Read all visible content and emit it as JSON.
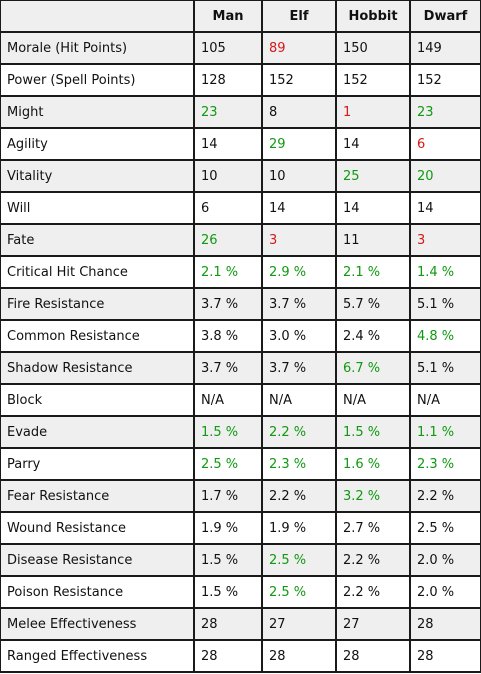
{
  "columns": [
    "Man",
    "Elf",
    "Hobbit",
    "Dwarf"
  ],
  "colors": {
    "good": "#109910",
    "bad": "#d81818",
    "neutral": "#111111"
  },
  "rows": [
    {
      "label": "Morale (Hit Points)",
      "values": [
        "105",
        "89",
        "150",
        "149"
      ],
      "status": [
        "neutral",
        "bad",
        "neutral",
        "neutral"
      ]
    },
    {
      "label": "Power (Spell Points)",
      "values": [
        "128",
        "152",
        "152",
        "152"
      ],
      "status": [
        "neutral",
        "neutral",
        "neutral",
        "neutral"
      ]
    },
    {
      "label": "Might",
      "values": [
        "23",
        "8",
        "1",
        "23"
      ],
      "status": [
        "good",
        "neutral",
        "bad",
        "good"
      ]
    },
    {
      "label": "Agility",
      "values": [
        "14",
        "29",
        "14",
        "6"
      ],
      "status": [
        "neutral",
        "good",
        "neutral",
        "bad"
      ]
    },
    {
      "label": "Vitality",
      "values": [
        "10",
        "10",
        "25",
        "20"
      ],
      "status": [
        "neutral",
        "neutral",
        "good",
        "good"
      ]
    },
    {
      "label": "Will",
      "values": [
        "6",
        "14",
        "14",
        "14"
      ],
      "status": [
        "neutral",
        "neutral",
        "neutral",
        "neutral"
      ]
    },
    {
      "label": "Fate",
      "values": [
        "26",
        "3",
        "11",
        "3"
      ],
      "status": [
        "good",
        "bad",
        "neutral",
        "bad"
      ]
    },
    {
      "label": "Critical Hit Chance",
      "values": [
        "2.1 %",
        "2.9 %",
        "2.1 %",
        "1.4 %"
      ],
      "status": [
        "good",
        "good",
        "good",
        "good"
      ]
    },
    {
      "label": "Fire Resistance",
      "values": [
        "3.7 %",
        "3.7 %",
        "5.7 %",
        "5.1 %"
      ],
      "status": [
        "neutral",
        "neutral",
        "neutral",
        "neutral"
      ]
    },
    {
      "label": "Common Resistance",
      "values": [
        "3.8 %",
        "3.0 %",
        "2.4 %",
        "4.8 %"
      ],
      "status": [
        "neutral",
        "neutral",
        "neutral",
        "good"
      ]
    },
    {
      "label": "Shadow Resistance",
      "values": [
        "3.7 %",
        "3.7 %",
        "6.7 %",
        "5.1 %"
      ],
      "status": [
        "neutral",
        "neutral",
        "good",
        "neutral"
      ]
    },
    {
      "label": "Block",
      "values": [
        "N/A",
        "N/A",
        "N/A",
        "N/A"
      ],
      "status": [
        "neutral",
        "neutral",
        "neutral",
        "neutral"
      ]
    },
    {
      "label": "Evade",
      "values": [
        "1.5 %",
        "2.2 %",
        "1.5 %",
        "1.1 %"
      ],
      "status": [
        "good",
        "good",
        "good",
        "good"
      ]
    },
    {
      "label": "Parry",
      "values": [
        "2.5 %",
        "2.3 %",
        "1.6 %",
        "2.3 %"
      ],
      "status": [
        "good",
        "good",
        "good",
        "good"
      ]
    },
    {
      "label": "Fear Resistance",
      "values": [
        "1.7 %",
        "2.2 %",
        "3.2 %",
        "2.2 %"
      ],
      "status": [
        "neutral",
        "neutral",
        "good",
        "neutral"
      ]
    },
    {
      "label": "Wound Resistance",
      "values": [
        "1.9 %",
        "1.9 %",
        "2.7 %",
        "2.5 %"
      ],
      "status": [
        "neutral",
        "neutral",
        "neutral",
        "neutral"
      ]
    },
    {
      "label": "Disease Resistance",
      "values": [
        "1.5 %",
        "2.5 %",
        "2.2 %",
        "2.0 %"
      ],
      "status": [
        "neutral",
        "good",
        "neutral",
        "neutral"
      ]
    },
    {
      "label": "Poison Resistance",
      "values": [
        "1.5 %",
        "2.5 %",
        "2.2 %",
        "2.0 %"
      ],
      "status": [
        "neutral",
        "good",
        "neutral",
        "neutral"
      ]
    },
    {
      "label": "Melee Effectiveness",
      "values": [
        "28",
        "27",
        "27",
        "28"
      ],
      "status": [
        "neutral",
        "neutral",
        "neutral",
        "neutral"
      ]
    },
    {
      "label": "Ranged Effectiveness",
      "values": [
        "28",
        "28",
        "28",
        "28"
      ],
      "status": [
        "neutral",
        "neutral",
        "neutral",
        "neutral"
      ]
    }
  ]
}
